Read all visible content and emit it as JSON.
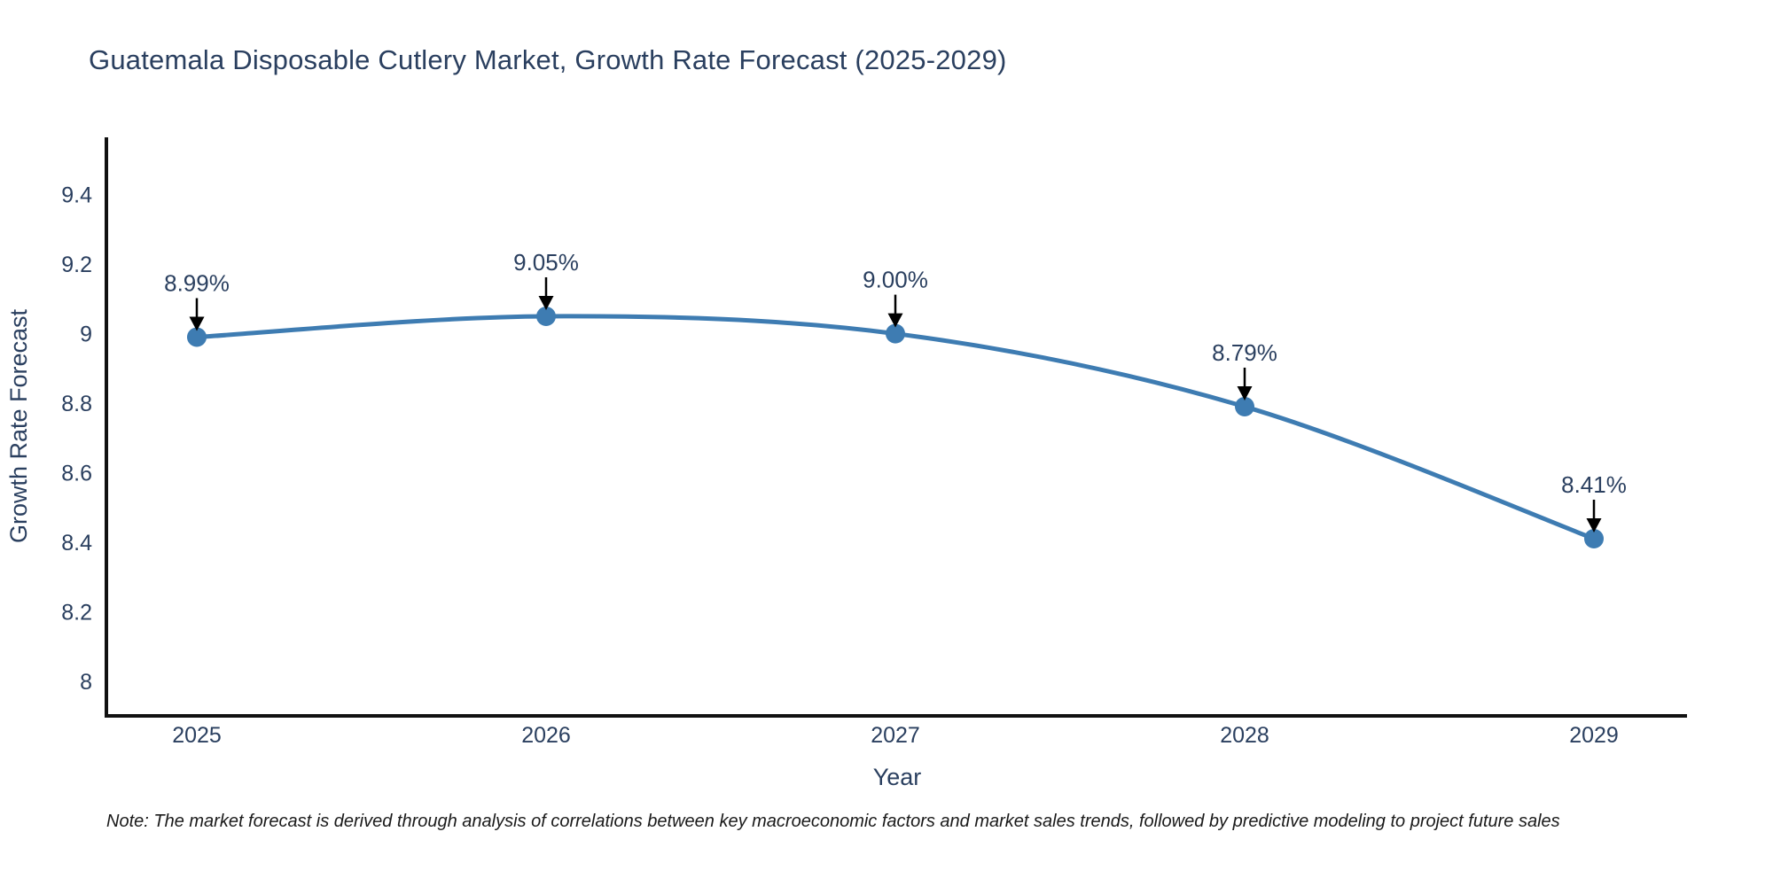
{
  "chart": {
    "title": "Guatemala Disposable Cutlery Market, Growth Rate Forecast (2025-2029)",
    "xlabel": "Year",
    "ylabel": "Growth Rate Forecast",
    "note": "Note: The market forecast is derived through analysis of correlations between key macroeconomic factors and market sales trends, followed by predictive modeling to project future sales"
  },
  "chart_data": {
    "type": "line",
    "categories": [
      "2025",
      "2026",
      "2027",
      "2028",
      "2029"
    ],
    "values": [
      8.99,
      9.05,
      9.0,
      8.79,
      8.41
    ],
    "point_labels": [
      "8.99%",
      "9.05%",
      "9.00%",
      "8.79%",
      "8.41%"
    ],
    "yticks": [
      "9.4",
      "9.2",
      "9",
      "8.8",
      "8.6",
      "8.4",
      "8.2",
      "8"
    ],
    "ylim": [
      7.9,
      9.565
    ],
    "title": "Guatemala Disposable Cutlery Market, Growth Rate Forecast (2025-2029)",
    "xlabel": "Year",
    "ylabel": "Growth Rate Forecast",
    "legend": "none",
    "grid": false,
    "line_shape": "spline",
    "colors": {
      "line": "#3e7cb2",
      "marker": "#3e7cb2",
      "axis": "#111111",
      "text": "#2a3f5f",
      "annotation_arrow": "#000000",
      "note_text": "#1a1a1a",
      "background": "#ffffff"
    }
  }
}
